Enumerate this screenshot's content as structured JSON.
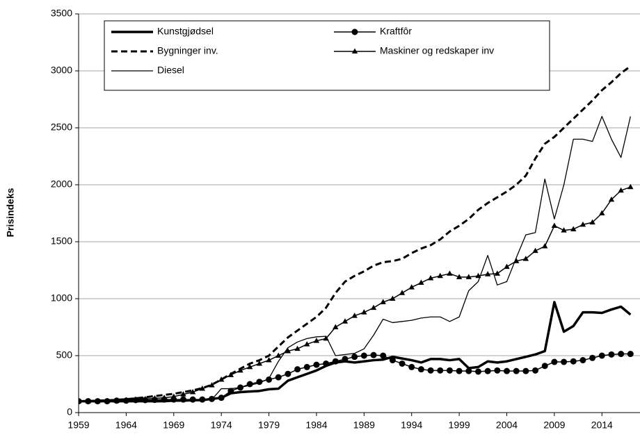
{
  "chart_data": {
    "type": "line",
    "ylabel": "Prisindeks",
    "x": [
      1959,
      1960,
      1961,
      1962,
      1963,
      1964,
      1965,
      1966,
      1967,
      1968,
      1969,
      1970,
      1971,
      1972,
      1973,
      1974,
      1975,
      1976,
      1977,
      1978,
      1979,
      1980,
      1981,
      1982,
      1983,
      1984,
      1985,
      1986,
      1987,
      1988,
      1989,
      1990,
      1991,
      1992,
      1993,
      1994,
      1995,
      1996,
      1997,
      1998,
      1999,
      2000,
      2001,
      2002,
      2003,
      2004,
      2005,
      2006,
      2007,
      2008,
      2009,
      2010,
      2011,
      2012,
      2013,
      2014,
      2015,
      2016,
      2017
    ],
    "xlim": [
      1959,
      2018
    ],
    "xticks": [
      1959,
      1964,
      1969,
      1974,
      1979,
      1984,
      1989,
      1994,
      1999,
      2004,
      2009,
      2014
    ],
    "ylim": [
      0,
      3500
    ],
    "yticks": [
      0,
      500,
      1000,
      1500,
      2000,
      2500,
      3000,
      3500
    ],
    "grid": true,
    "series": [
      {
        "name": "Kunstgjødsel",
        "color": "#000000",
        "width": 3.5,
        "dash": "none",
        "marker": "none",
        "values": [
          100,
          100,
          100,
          100,
          100,
          100,
          100,
          100,
          100,
          100,
          105,
          105,
          108,
          110,
          120,
          130,
          170,
          180,
          185,
          190,
          205,
          210,
          280,
          310,
          340,
          370,
          410,
          440,
          450,
          440,
          450,
          460,
          465,
          490,
          475,
          460,
          440,
          470,
          470,
          460,
          470,
          390,
          400,
          450,
          440,
          450,
          470,
          490,
          510,
          540,
          970,
          710,
          760,
          880,
          880,
          875,
          905,
          930,
          860
        ]
      },
      {
        "name": "Kraftfôr",
        "color": "#000000",
        "width": 1.5,
        "dash": "none",
        "marker": "circle",
        "values": [
          100,
          100,
          100,
          100,
          105,
          105,
          110,
          110,
          112,
          115,
          115,
          115,
          115,
          115,
          120,
          130,
          190,
          220,
          250,
          270,
          290,
          310,
          340,
          380,
          400,
          420,
          430,
          450,
          470,
          490,
          500,
          505,
          500,
          460,
          430,
          400,
          380,
          370,
          370,
          370,
          365,
          365,
          360,
          365,
          370,
          365,
          365,
          365,
          370,
          410,
          445,
          445,
          450,
          460,
          480,
          500,
          510,
          515,
          515
        ]
      },
      {
        "name": "Bygninger inv.",
        "color": "#000000",
        "width": 3,
        "dash": "9 5",
        "marker": "none",
        "values": [
          100,
          102,
          105,
          108,
          112,
          118,
          125,
          135,
          145,
          155,
          165,
          180,
          195,
          215,
          245,
          290,
          340,
          385,
          430,
          460,
          500,
          580,
          660,
          720,
          780,
          840,
          920,
          1050,
          1150,
          1200,
          1240,
          1290,
          1320,
          1330,
          1350,
          1400,
          1440,
          1470,
          1520,
          1590,
          1640,
          1700,
          1780,
          1840,
          1890,
          1940,
          2000,
          2080,
          2230,
          2360,
          2420,
          2500,
          2580,
          2660,
          2740,
          2830,
          2900,
          2980,
          3040
        ]
      },
      {
        "name": "Maskiner og redskaper inv",
        "color": "#000000",
        "width": 1.5,
        "dash": "none",
        "marker": "triangle",
        "values": [
          100,
          100,
          100,
          102,
          105,
          110,
          115,
          120,
          125,
          130,
          140,
          160,
          180,
          210,
          240,
          290,
          330,
          370,
          400,
          430,
          460,
          500,
          540,
          560,
          600,
          630,
          650,
          750,
          800,
          850,
          880,
          920,
          970,
          1000,
          1050,
          1100,
          1140,
          1180,
          1200,
          1220,
          1190,
          1190,
          1200,
          1215,
          1220,
          1280,
          1330,
          1350,
          1420,
          1460,
          1640,
          1600,
          1610,
          1650,
          1670,
          1750,
          1870,
          1950,
          1980
        ]
      },
      {
        "name": "Diesel",
        "color": "#000000",
        "width": 1.3,
        "dash": "none",
        "marker": "none",
        "values": [
          100,
          100,
          100,
          100,
          100,
          100,
          100,
          100,
          100,
          100,
          100,
          105,
          110,
          110,
          115,
          210,
          210,
          220,
          240,
          260,
          300,
          450,
          570,
          620,
          650,
          665,
          670,
          500,
          510,
          520,
          560,
          680,
          820,
          790,
          800,
          810,
          830,
          840,
          840,
          800,
          840,
          1070,
          1150,
          1380,
          1120,
          1150,
          1360,
          1560,
          1580,
          2050,
          1700,
          2000,
          2400,
          2400,
          2380,
          2600,
          2400,
          2240,
          2600
        ]
      }
    ]
  }
}
